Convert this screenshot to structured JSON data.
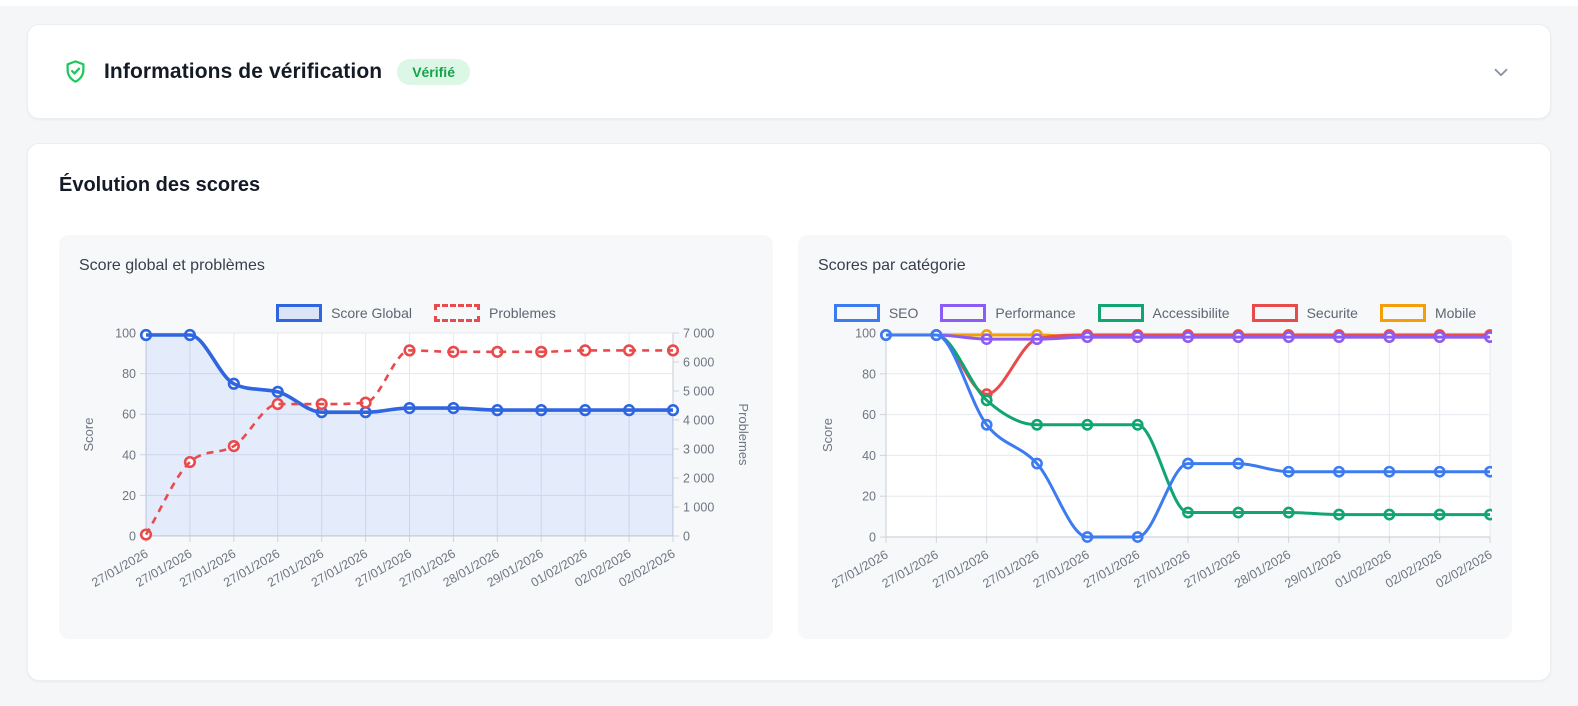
{
  "header": {
    "title": "Informations de vérification",
    "badge": "Vérifié",
    "shield_color": "#22c55e",
    "badge_bg": "#dcf7e6",
    "badge_text_color": "#16a34a"
  },
  "section": {
    "heading": "Évolution des scores"
  },
  "chart_data": [
    {
      "type": "line",
      "title": "Score global et problèmes",
      "x": [
        "27/01/2026",
        "27/01/2026",
        "27/01/2026",
        "27/01/2026",
        "27/01/2026",
        "27/01/2026",
        "27/01/2026",
        "27/01/2026",
        "28/01/2026",
        "29/01/2026",
        "01/02/2026",
        "02/02/2026",
        "02/02/2026"
      ],
      "ylabel_left": "Score",
      "ylabel_right": "Problemes",
      "ylim_left": [
        0,
        100
      ],
      "ylim_right": [
        0,
        7000
      ],
      "yticks_left": [
        0,
        20,
        40,
        60,
        80,
        100
      ],
      "yticks_right": {
        "values": [
          0,
          1000,
          2000,
          3000,
          4000,
          5000,
          6000,
          7000
        ],
        "labels": [
          "0",
          "1 000",
          "2 000",
          "3 000",
          "4 000",
          "5 000",
          "6 000",
          "7 000"
        ]
      },
      "grid": true,
      "legend_position": "top",
      "series": [
        {
          "name": "Score Global",
          "axis": "left",
          "color": "#2f66e0",
          "dash": false,
          "width": 3.6,
          "area_fill": "rgba(47,102,224,0.13)",
          "legend_fill": "#dbe3f8",
          "values": [
            99,
            99,
            75,
            71,
            61,
            61,
            63,
            63,
            62,
            62,
            62,
            62,
            62
          ]
        },
        {
          "name": "Problemes",
          "axis": "right",
          "color": "#e94b4d",
          "dash": true,
          "width": 2.6,
          "values": [
            50,
            2550,
            3100,
            4550,
            4550,
            4600,
            6400,
            6350,
            6350,
            6350,
            6400,
            6400,
            6400
          ]
        }
      ]
    },
    {
      "type": "line",
      "title": "Scores par catégorie",
      "x": [
        "27/01/2026",
        "27/01/2026",
        "27/01/2026",
        "27/01/2026",
        "27/01/2026",
        "27/01/2026",
        "27/01/2026",
        "27/01/2026",
        "28/01/2026",
        "29/01/2026",
        "01/02/2026",
        "02/02/2026",
        "02/02/2026"
      ],
      "ylabel_left": "Score",
      "ylim_left": [
        0,
        100
      ],
      "yticks_left": [
        0,
        20,
        40,
        60,
        80,
        100
      ],
      "grid": true,
      "legend_position": "top",
      "series": [
        {
          "name": "SEO",
          "axis": "left",
          "color": "#3d7bf0",
          "dash": false,
          "width": 3,
          "values": [
            99,
            99,
            55,
            36,
            0,
            0,
            36,
            36,
            32,
            32,
            32,
            32,
            32
          ]
        },
        {
          "name": "Performance",
          "axis": "left",
          "color": "#8b5cf6",
          "dash": false,
          "width": 3,
          "values": [
            99,
            99,
            97,
            97,
            98,
            98,
            98,
            98,
            98,
            98,
            98,
            98,
            98
          ]
        },
        {
          "name": "Accessibilite",
          "axis": "left",
          "color": "#10a571",
          "dash": false,
          "width": 3,
          "values": [
            99,
            99,
            67,
            55,
            55,
            55,
            12,
            12,
            12,
            11,
            11,
            11,
            11
          ]
        },
        {
          "name": "Securite",
          "axis": "left",
          "color": "#e94b4d",
          "dash": false,
          "width": 3,
          "values": [
            99,
            99,
            70,
            97,
            99,
            99,
            99,
            99,
            99,
            99,
            99,
            99,
            99
          ]
        },
        {
          "name": "Mobile",
          "axis": "left",
          "color": "#f59e0b",
          "dash": false,
          "width": 3,
          "values": [
            99,
            99,
            99,
            99,
            98,
            98,
            98,
            98,
            98,
            98,
            98,
            98,
            98
          ]
        }
      ]
    }
  ]
}
